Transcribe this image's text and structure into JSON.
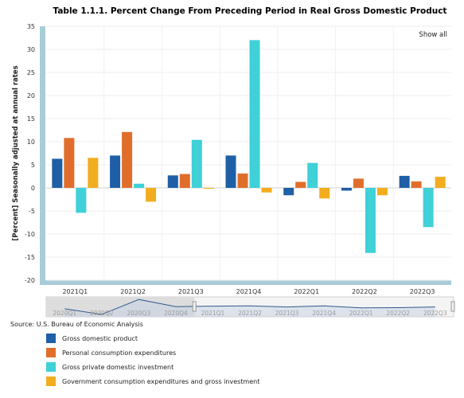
{
  "chart_data": {
    "type": "bar",
    "title": "Table 1.1.1. Percent Change From Preceding Period in Real Gross Domestic Product",
    "ylabel": "[Percent] Seasonally adjusted at annual rates",
    "xlabel": "",
    "ylim": [
      -20,
      35
    ],
    "yticks": [
      35,
      30,
      25,
      20,
      15,
      10,
      5,
      0,
      -5,
      -10,
      -15,
      -20
    ],
    "grid": true,
    "legend_position": "bottom-left",
    "categories": [
      "2021Q1",
      "2021Q2",
      "2021Q3",
      "2021Q4",
      "2022Q1",
      "2022Q2",
      "2022Q3"
    ],
    "series": [
      {
        "name": "Gross domestic product",
        "color": "#1f5fa6",
        "values": [
          6.3,
          7.0,
          2.7,
          7.0,
          -1.6,
          -0.6,
          2.6
        ]
      },
      {
        "name": "Personal consumption expenditures",
        "color": "#e06e2a",
        "values": [
          10.8,
          12.1,
          3.0,
          3.1,
          1.3,
          2.0,
          1.4
        ]
      },
      {
        "name": "Gross private domestic investment",
        "color": "#3fd0d8",
        "values": [
          -5.4,
          0.9,
          10.4,
          32.0,
          5.4,
          -14.1,
          -8.5
        ]
      },
      {
        "name": "Government consumption expenditures and gross investment",
        "color": "#f2ad1e",
        "values": [
          6.5,
          -3.0,
          -0.2,
          -1.0,
          -2.3,
          -1.6,
          2.4
        ]
      }
    ]
  },
  "ui": {
    "show_all": "Show all",
    "source": "Source: U.S. Bureau of Economic Analysis"
  },
  "navigator": {
    "labels": [
      "2020Q1",
      "2020Q2",
      "2020Q3",
      "2020Q4",
      "2021Q1",
      "2021Q2",
      "2021Q3",
      "2021Q4",
      "2022Q1",
      "2022Q2",
      "2022Q3"
    ],
    "selection_start_index": 4,
    "gdp_values": [
      -5.5,
      -29.9,
      35.3,
      3.9,
      6.3,
      7.0,
      2.7,
      7.0,
      -1.6,
      -0.6,
      2.6
    ]
  },
  "colors": {
    "plot_band": "#a8ccd8",
    "navigator_line": "#335b8f",
    "navigator_mask": "#dadada"
  }
}
